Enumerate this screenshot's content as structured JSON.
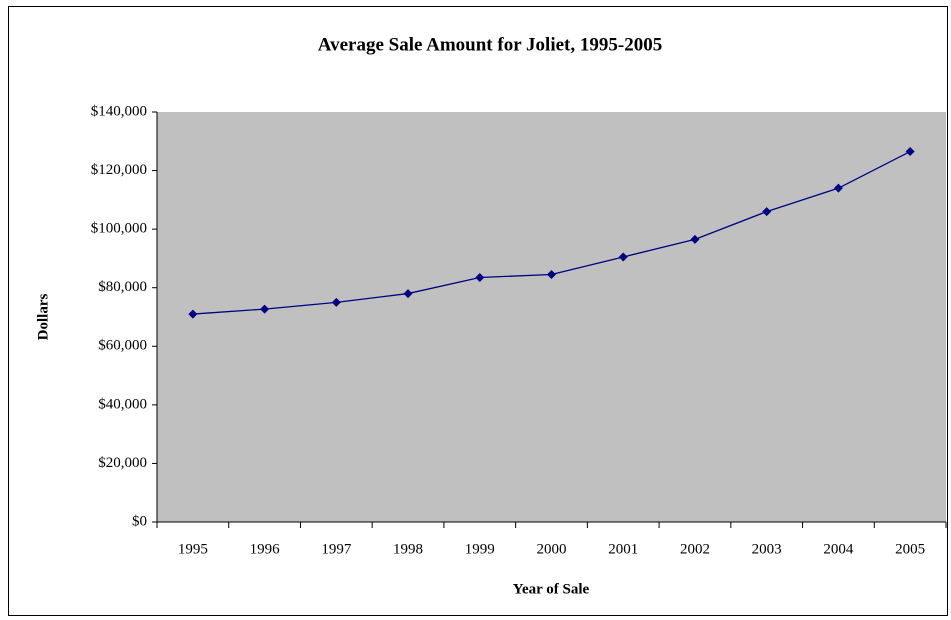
{
  "chart_data": {
    "type": "line",
    "title": "Average Sale Amount for Joliet, 1995-2005",
    "x_label": "Year of Sale",
    "y_label": "Dollars",
    "categories": [
      "1995",
      "1996",
      "1997",
      "1998",
      "1999",
      "2000",
      "2001",
      "2002",
      "2003",
      "2004",
      "2005"
    ],
    "series": [
      {
        "color": "#000080",
        "values": [
          71000,
          72700,
          75000,
          78000,
          83500,
          84500,
          90500,
          96500,
          106000,
          114000,
          126500
        ]
      }
    ],
    "ylim": [
      0,
      140000
    ],
    "yticks": [
      {
        "value": 0,
        "label": "$0"
      },
      {
        "value": 20000,
        "label": "$20,000"
      },
      {
        "value": 40000,
        "label": "$40,000"
      },
      {
        "value": 60000,
        "label": "$60,000"
      },
      {
        "value": 80000,
        "label": "$80,000"
      },
      {
        "value": 100000,
        "label": "$100,000"
      },
      {
        "value": 120000,
        "label": "$120,000"
      },
      {
        "value": 140000,
        "label": "$140,000"
      }
    ],
    "grid": false,
    "plot_background": "#c0c0c0"
  }
}
